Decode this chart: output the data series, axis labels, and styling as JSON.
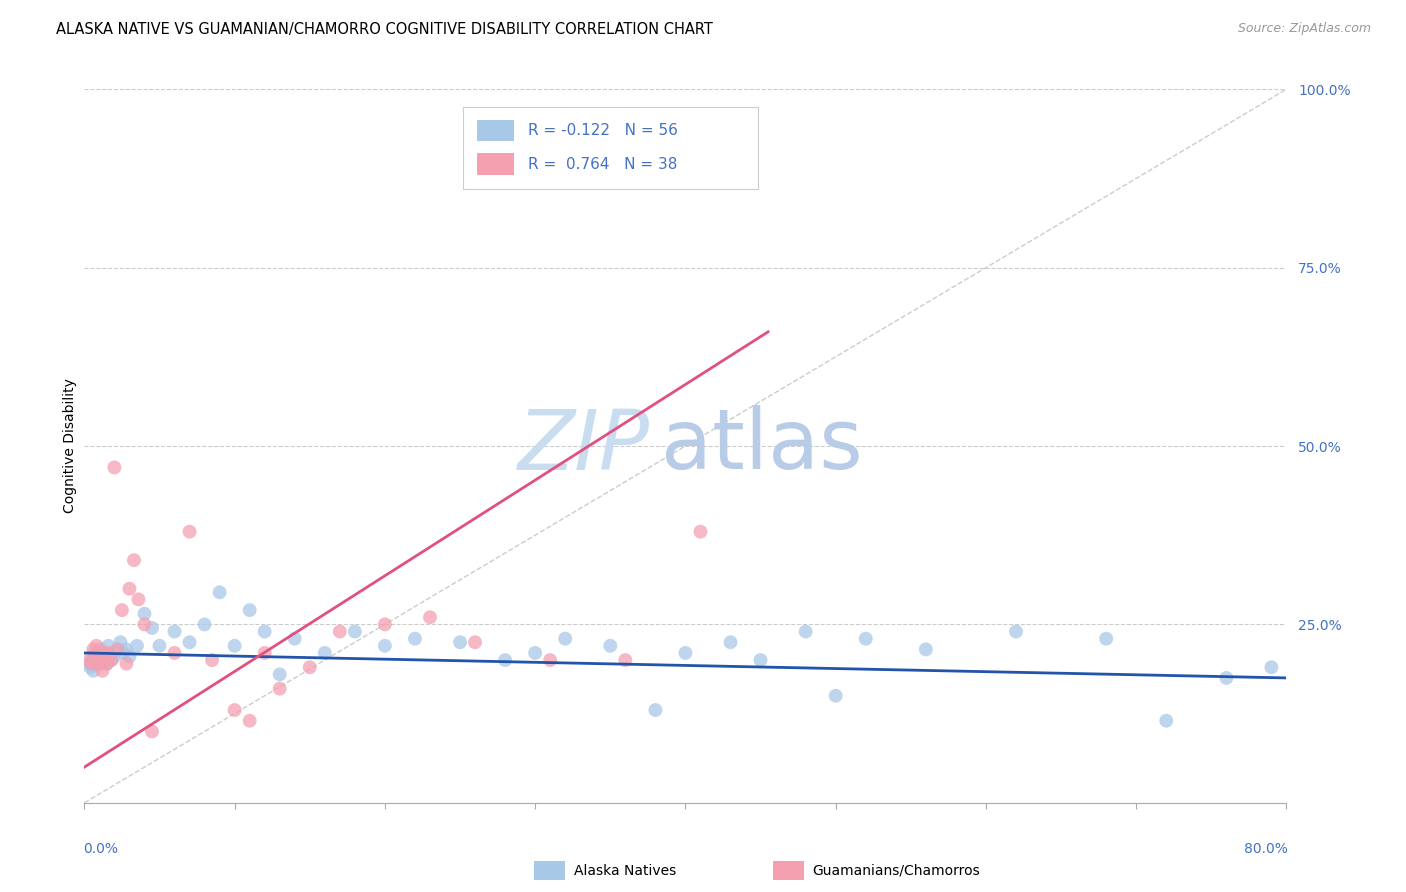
{
  "title": "ALASKA NATIVE VS GUAMANIAN/CHAMORRO COGNITIVE DISABILITY CORRELATION CHART",
  "source": "Source: ZipAtlas.com",
  "ylabel": "Cognitive Disability",
  "xmin": 0.0,
  "xmax": 0.8,
  "ymin": 0.0,
  "ymax": 1.0,
  "legend_r_blue": "-0.122",
  "legend_n_blue": "56",
  "legend_r_pink": "0.764",
  "legend_n_pink": "38",
  "blue_color": "#a8c8e8",
  "pink_color": "#f4a0b0",
  "blue_line_color": "#2255aa",
  "pink_line_color": "#e05080",
  "diag_line_color": "#cccccc",
  "watermark_zip": "ZIP",
  "watermark_atlas": "atlas",
  "watermark_color_zip": "#c8ddf0",
  "watermark_color_atlas": "#b8cce8",
  "background_color": "#ffffff",
  "grid_color": "#cccccc",
  "blue_scatter_x": [
    0.003,
    0.004,
    0.005,
    0.006,
    0.007,
    0.008,
    0.009,
    0.01,
    0.011,
    0.012,
    0.013,
    0.014,
    0.015,
    0.016,
    0.018,
    0.02,
    0.022,
    0.024,
    0.026,
    0.028,
    0.03,
    0.035,
    0.04,
    0.045,
    0.05,
    0.06,
    0.07,
    0.08,
    0.09,
    0.1,
    0.11,
    0.12,
    0.13,
    0.14,
    0.16,
    0.18,
    0.2,
    0.22,
    0.25,
    0.28,
    0.3,
    0.32,
    0.35,
    0.38,
    0.4,
    0.43,
    0.45,
    0.48,
    0.5,
    0.52,
    0.56,
    0.62,
    0.68,
    0.72,
    0.76,
    0.79
  ],
  "blue_scatter_y": [
    0.195,
    0.19,
    0.2,
    0.185,
    0.21,
    0.195,
    0.205,
    0.2,
    0.215,
    0.195,
    0.2,
    0.21,
    0.195,
    0.22,
    0.2,
    0.205,
    0.215,
    0.225,
    0.21,
    0.215,
    0.205,
    0.22,
    0.265,
    0.245,
    0.22,
    0.24,
    0.225,
    0.25,
    0.295,
    0.22,
    0.27,
    0.24,
    0.18,
    0.23,
    0.21,
    0.24,
    0.22,
    0.23,
    0.225,
    0.2,
    0.21,
    0.23,
    0.22,
    0.13,
    0.21,
    0.225,
    0.2,
    0.24,
    0.15,
    0.23,
    0.215,
    0.24,
    0.23,
    0.115,
    0.175,
    0.19
  ],
  "pink_scatter_x": [
    0.003,
    0.005,
    0.006,
    0.007,
    0.008,
    0.009,
    0.01,
    0.011,
    0.012,
    0.013,
    0.014,
    0.015,
    0.016,
    0.018,
    0.02,
    0.022,
    0.025,
    0.028,
    0.03,
    0.033,
    0.036,
    0.04,
    0.045,
    0.06,
    0.07,
    0.085,
    0.1,
    0.11,
    0.12,
    0.13,
    0.15,
    0.17,
    0.2,
    0.23,
    0.26,
    0.31,
    0.36,
    0.41
  ],
  "pink_scatter_y": [
    0.2,
    0.195,
    0.215,
    0.205,
    0.22,
    0.195,
    0.21,
    0.205,
    0.185,
    0.2,
    0.21,
    0.195,
    0.21,
    0.2,
    0.47,
    0.215,
    0.27,
    0.195,
    0.3,
    0.34,
    0.285,
    0.25,
    0.1,
    0.21,
    0.38,
    0.2,
    0.13,
    0.115,
    0.21,
    0.16,
    0.19,
    0.24,
    0.25,
    0.26,
    0.225,
    0.2,
    0.2,
    0.38
  ],
  "blue_line_x": [
    0.0,
    0.8
  ],
  "blue_line_y": [
    0.21,
    0.175
  ],
  "pink_line_x": [
    0.0,
    0.455
  ],
  "pink_line_y": [
    0.05,
    0.66
  ],
  "title_fontsize": 10.5,
  "axis_label_fontsize": 10,
  "tick_fontsize": 10,
  "legend_fontsize": 11,
  "source_fontsize": 9
}
